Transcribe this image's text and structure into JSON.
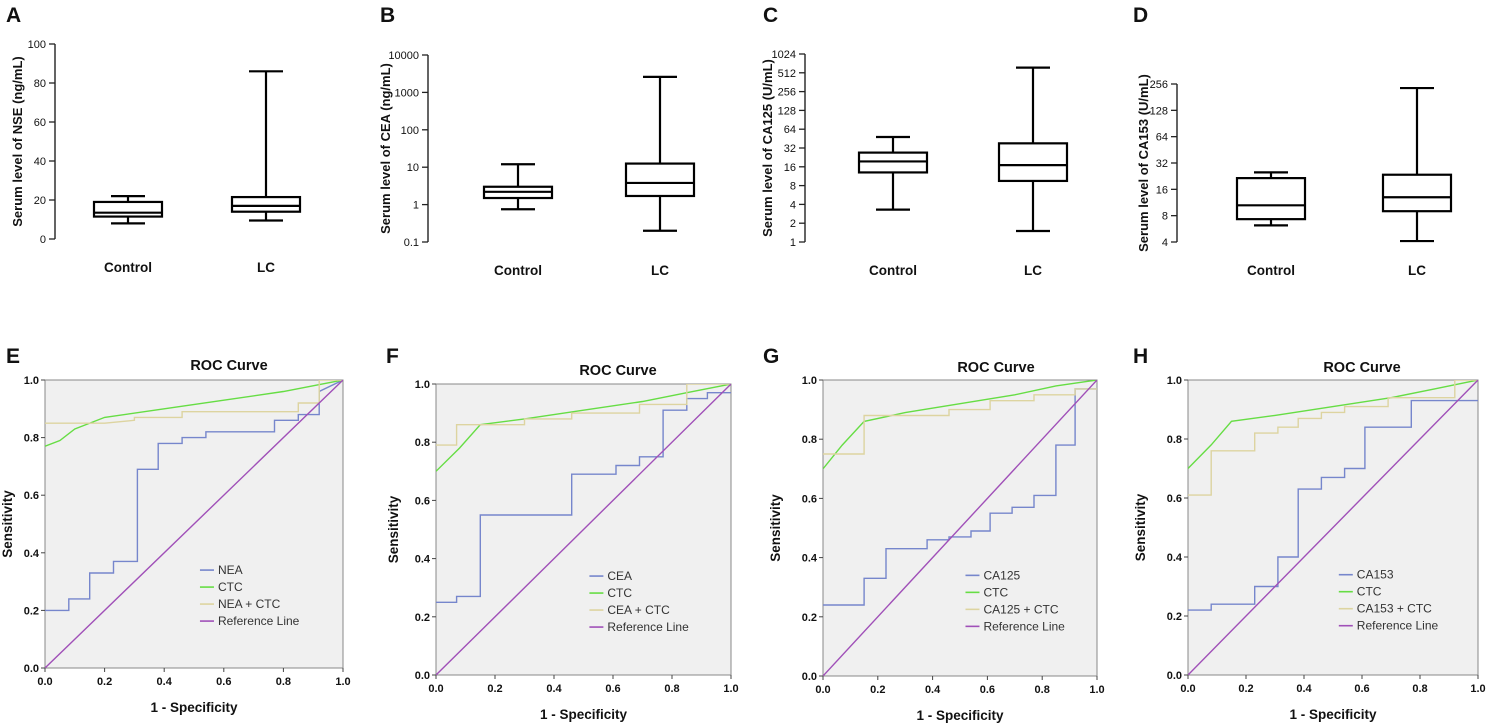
{
  "chart_data": [
    {
      "type": "box",
      "panel": "A",
      "ylabel": "Serum level of NSE (ng/mL)",
      "scale": "linear",
      "ylim": [
        0,
        100
      ],
      "ticks": [
        0,
        20,
        40,
        60,
        80,
        100
      ],
      "tick_labels": [
        "0",
        "20",
        "40",
        "60",
        "80",
        "100"
      ],
      "categories": [
        "Control",
        "LC"
      ],
      "boxes": [
        {
          "min": 8,
          "q1": 11.5,
          "median": 13.5,
          "q3": 19,
          "max": 22
        },
        {
          "min": 9.5,
          "q1": 14,
          "median": 17,
          "q3": 21.5,
          "max": 86
        }
      ]
    },
    {
      "type": "box",
      "panel": "B",
      "ylabel": "Serum level of CEA (ng/mL)",
      "scale": "log10",
      "ylim": [
        0.1,
        10000
      ],
      "ticks": [
        0.1,
        1,
        10,
        100,
        1000,
        10000
      ],
      "tick_labels": [
        "0.1",
        "1",
        "10",
        "100",
        "1000",
        "10000"
      ],
      "categories": [
        "Control",
        "LC"
      ],
      "boxes": [
        {
          "min": 0.75,
          "q1": 1.5,
          "median": 2.2,
          "q3": 3.0,
          "max": 12
        },
        {
          "min": 0.2,
          "q1": 1.7,
          "median": 3.8,
          "q3": 12.5,
          "max": 2600
        }
      ]
    },
    {
      "type": "box",
      "panel": "C",
      "ylabel": "Serum level of CA125 (U/mL)",
      "scale": "log2",
      "ylim": [
        1,
        1024
      ],
      "ticks": [
        1,
        2,
        4,
        8,
        16,
        32,
        64,
        128,
        256,
        512,
        1024
      ],
      "tick_labels": [
        "1",
        "2",
        "4",
        "8",
        "16",
        "32",
        "64",
        "128",
        "256",
        "512",
        "1024"
      ],
      "categories": [
        "Control",
        "LC"
      ],
      "boxes": [
        {
          "min": 3.3,
          "q1": 13,
          "median": 19.5,
          "q3": 27,
          "max": 48
        },
        {
          "min": 1.5,
          "q1": 9.5,
          "median": 17,
          "q3": 38,
          "max": 620
        }
      ]
    },
    {
      "type": "box",
      "panel": "D",
      "ylabel": "Serum level of CA153 (U/mL)",
      "scale": "log2",
      "ylim": [
        4,
        256
      ],
      "ticks": [
        4,
        8,
        16,
        32,
        64,
        128,
        256
      ],
      "tick_labels": [
        "4",
        "8",
        "16",
        "32",
        "64",
        "128",
        "256"
      ],
      "categories": [
        "Control",
        "LC"
      ],
      "boxes": [
        {
          "min": 6.2,
          "q1": 7.3,
          "median": 10.5,
          "q3": 21.5,
          "max": 25
        },
        {
          "min": 4.1,
          "q1": 9,
          "median": 13,
          "q3": 23.5,
          "max": 230
        }
      ]
    },
    {
      "type": "line",
      "panel": "E",
      "title": "ROC Curve",
      "xlabel": "1 - Specificity",
      "ylabel": "Sensitivity",
      "xlim": [
        0,
        1
      ],
      "ylim": [
        0,
        1
      ],
      "xticks": [
        "0.0",
        "0.2",
        "0.4",
        "0.6",
        "0.8",
        "1.0"
      ],
      "yticks": [
        "0.0",
        "0.2",
        "0.4",
        "0.6",
        "0.8",
        "1.0"
      ],
      "series": [
        {
          "name": "NEA",
          "color": "#7686cc",
          "points": [
            [
              0,
              0.2
            ],
            [
              0.08,
              0.2
            ],
            [
              0.08,
              0.24
            ],
            [
              0.15,
              0.24
            ],
            [
              0.15,
              0.33
            ],
            [
              0.23,
              0.33
            ],
            [
              0.23,
              0.37
            ],
            [
              0.31,
              0.37
            ],
            [
              0.31,
              0.69
            ],
            [
              0.38,
              0.69
            ],
            [
              0.38,
              0.78
            ],
            [
              0.46,
              0.78
            ],
            [
              0.46,
              0.8
            ],
            [
              0.54,
              0.8
            ],
            [
              0.54,
              0.82
            ],
            [
              0.77,
              0.82
            ],
            [
              0.77,
              0.86
            ],
            [
              0.85,
              0.86
            ],
            [
              0.85,
              0.88
            ],
            [
              0.92,
              0.88
            ],
            [
              0.92,
              0.96
            ],
            [
              1,
              1
            ]
          ]
        },
        {
          "name": "CTC",
          "color": "#66dd44",
          "points": [
            [
              0,
              0.77
            ],
            [
              0.05,
              0.79
            ],
            [
              0.1,
              0.83
            ],
            [
              0.2,
              0.87
            ],
            [
              0.4,
              0.9
            ],
            [
              0.6,
              0.93
            ],
            [
              0.8,
              0.96
            ],
            [
              1,
              1
            ]
          ]
        },
        {
          "name": "NEA + CTC",
          "color": "#ddd4a0",
          "points": [
            [
              0,
              0.85
            ],
            [
              0.2,
              0.85
            ],
            [
              0.3,
              0.86
            ],
            [
              0.3,
              0.87
            ],
            [
              0.46,
              0.87
            ],
            [
              0.46,
              0.89
            ],
            [
              0.85,
              0.89
            ],
            [
              0.85,
              0.92
            ],
            [
              0.92,
              0.92
            ],
            [
              0.92,
              1
            ],
            [
              1,
              1
            ]
          ]
        },
        {
          "name": "Reference Line",
          "color": "#a050b8",
          "points": [
            [
              0,
              0
            ],
            [
              1,
              1
            ]
          ]
        }
      ]
    },
    {
      "type": "line",
      "panel": "F",
      "title": "ROC Curve",
      "xlabel": "1 - Specificity",
      "ylabel": "Sensitivity",
      "xlim": [
        0,
        1
      ],
      "ylim": [
        0,
        1
      ],
      "xticks": [
        "0.0",
        "0.2",
        "0.4",
        "0.6",
        "0.8",
        "1.0"
      ],
      "yticks": [
        "0.0",
        "0.2",
        "0.4",
        "0.6",
        "0.8",
        "1.0"
      ],
      "series": [
        {
          "name": "CEA",
          "color": "#7686cc",
          "points": [
            [
              0,
              0.25
            ],
            [
              0.07,
              0.25
            ],
            [
              0.07,
              0.27
            ],
            [
              0.15,
              0.27
            ],
            [
              0.15,
              0.55
            ],
            [
              0.46,
              0.55
            ],
            [
              0.46,
              0.69
            ],
            [
              0.61,
              0.69
            ],
            [
              0.61,
              0.72
            ],
            [
              0.69,
              0.72
            ],
            [
              0.69,
              0.75
            ],
            [
              0.77,
              0.75
            ],
            [
              0.77,
              0.91
            ],
            [
              0.85,
              0.91
            ],
            [
              0.85,
              0.95
            ],
            [
              0.92,
              0.95
            ],
            [
              0.92,
              0.97
            ],
            [
              1,
              0.97
            ]
          ]
        },
        {
          "name": "CTC",
          "color": "#66dd44",
          "points": [
            [
              0,
              0.7
            ],
            [
              0.08,
              0.78
            ],
            [
              0.15,
              0.86
            ],
            [
              0.3,
              0.88
            ],
            [
              0.5,
              0.91
            ],
            [
              0.7,
              0.94
            ],
            [
              0.85,
              0.97
            ],
            [
              1,
              1
            ]
          ]
        },
        {
          "name": "CEA + CTC",
          "color": "#ddd4a0",
          "points": [
            [
              0,
              0.79
            ],
            [
              0.07,
              0.79
            ],
            [
              0.07,
              0.86
            ],
            [
              0.3,
              0.86
            ],
            [
              0.3,
              0.88
            ],
            [
              0.46,
              0.88
            ],
            [
              0.46,
              0.9
            ],
            [
              0.69,
              0.9
            ],
            [
              0.69,
              0.93
            ],
            [
              0.85,
              0.93
            ],
            [
              0.85,
              1
            ],
            [
              1,
              1
            ]
          ]
        },
        {
          "name": "Reference Line",
          "color": "#a050b8",
          "points": [
            [
              0,
              0
            ],
            [
              1,
              1
            ]
          ]
        }
      ]
    },
    {
      "type": "line",
      "panel": "G",
      "title": "ROC Curve",
      "xlabel": "1 - Specificity",
      "ylabel": "Sensitivity",
      "xlim": [
        0,
        1
      ],
      "ylim": [
        0,
        1
      ],
      "xticks": [
        "0.0",
        "0.2",
        "0.4",
        "0.6",
        "0.8",
        "1.0"
      ],
      "yticks": [
        "0.0",
        "0.2",
        "0.4",
        "0.6",
        "0.8",
        "1.0"
      ],
      "series": [
        {
          "name": "CA125",
          "color": "#7686cc",
          "points": [
            [
              0,
              0.24
            ],
            [
              0.15,
              0.24
            ],
            [
              0.15,
              0.33
            ],
            [
              0.23,
              0.33
            ],
            [
              0.23,
              0.43
            ],
            [
              0.38,
              0.43
            ],
            [
              0.38,
              0.46
            ],
            [
              0.46,
              0.46
            ],
            [
              0.46,
              0.47
            ],
            [
              0.54,
              0.47
            ],
            [
              0.54,
              0.49
            ],
            [
              0.61,
              0.49
            ],
            [
              0.61,
              0.55
            ],
            [
              0.69,
              0.55
            ],
            [
              0.69,
              0.57
            ],
            [
              0.77,
              0.57
            ],
            [
              0.77,
              0.61
            ],
            [
              0.85,
              0.61
            ],
            [
              0.85,
              0.78
            ],
            [
              0.92,
              0.78
            ],
            [
              0.92,
              0.97
            ],
            [
              1,
              0.97
            ]
          ]
        },
        {
          "name": "CTC",
          "color": "#66dd44",
          "points": [
            [
              0,
              0.7
            ],
            [
              0.07,
              0.78
            ],
            [
              0.15,
              0.86
            ],
            [
              0.3,
              0.89
            ],
            [
              0.5,
              0.92
            ],
            [
              0.7,
              0.95
            ],
            [
              0.85,
              0.98
            ],
            [
              1,
              1
            ]
          ]
        },
        {
          "name": "CA125 + CTC",
          "color": "#ddd4a0",
          "points": [
            [
              0,
              0.75
            ],
            [
              0.15,
              0.75
            ],
            [
              0.15,
              0.88
            ],
            [
              0.46,
              0.88
            ],
            [
              0.46,
              0.9
            ],
            [
              0.61,
              0.9
            ],
            [
              0.61,
              0.93
            ],
            [
              0.77,
              0.93
            ],
            [
              0.77,
              0.95
            ],
            [
              0.92,
              0.95
            ],
            [
              0.92,
              0.97
            ],
            [
              1,
              0.97
            ]
          ]
        },
        {
          "name": "Reference Line",
          "color": "#a050b8",
          "points": [
            [
              0,
              0
            ],
            [
              1,
              1
            ]
          ]
        }
      ]
    },
    {
      "type": "line",
      "panel": "H",
      "title": "ROC Curve",
      "xlabel": "1 - Specificity",
      "ylabel": "Sensitivity",
      "xlim": [
        0,
        1
      ],
      "ylim": [
        0,
        1
      ],
      "xticks": [
        "0.0",
        "0.2",
        "0.4",
        "0.6",
        "0.8",
        "1.0"
      ],
      "yticks": [
        "0.0",
        "0.2",
        "0.4",
        "0.6",
        "0.8",
        "1.0"
      ],
      "series": [
        {
          "name": "CA153",
          "color": "#7686cc",
          "points": [
            [
              0,
              0.22
            ],
            [
              0.08,
              0.22
            ],
            [
              0.08,
              0.24
            ],
            [
              0.23,
              0.24
            ],
            [
              0.23,
              0.3
            ],
            [
              0.31,
              0.3
            ],
            [
              0.31,
              0.4
            ],
            [
              0.38,
              0.4
            ],
            [
              0.38,
              0.63
            ],
            [
              0.46,
              0.63
            ],
            [
              0.46,
              0.67
            ],
            [
              0.54,
              0.67
            ],
            [
              0.54,
              0.7
            ],
            [
              0.61,
              0.7
            ],
            [
              0.61,
              0.84
            ],
            [
              0.77,
              0.84
            ],
            [
              0.77,
              0.93
            ],
            [
              1,
              0.93
            ]
          ]
        },
        {
          "name": "CTC",
          "color": "#66dd44",
          "points": [
            [
              0,
              0.7
            ],
            [
              0.08,
              0.78
            ],
            [
              0.15,
              0.86
            ],
            [
              0.3,
              0.88
            ],
            [
              0.5,
              0.91
            ],
            [
              0.7,
              0.94
            ],
            [
              0.85,
              0.97
            ],
            [
              1,
              1
            ]
          ]
        },
        {
          "name": "CA153 + CTC",
          "color": "#ddd4a0",
          "points": [
            [
              0,
              0.61
            ],
            [
              0.08,
              0.61
            ],
            [
              0.08,
              0.76
            ],
            [
              0.23,
              0.76
            ],
            [
              0.23,
              0.82
            ],
            [
              0.31,
              0.82
            ],
            [
              0.31,
              0.84
            ],
            [
              0.38,
              0.84
            ],
            [
              0.38,
              0.87
            ],
            [
              0.46,
              0.87
            ],
            [
              0.46,
              0.89
            ],
            [
              0.54,
              0.89
            ],
            [
              0.54,
              0.91
            ],
            [
              0.69,
              0.91
            ],
            [
              0.69,
              0.94
            ],
            [
              0.92,
              0.94
            ],
            [
              0.92,
              1
            ],
            [
              1,
              1
            ]
          ]
        },
        {
          "name": "Reference Line",
          "color": "#a050b8",
          "points": [
            [
              0,
              0
            ],
            [
              1,
              1
            ]
          ]
        }
      ]
    }
  ]
}
